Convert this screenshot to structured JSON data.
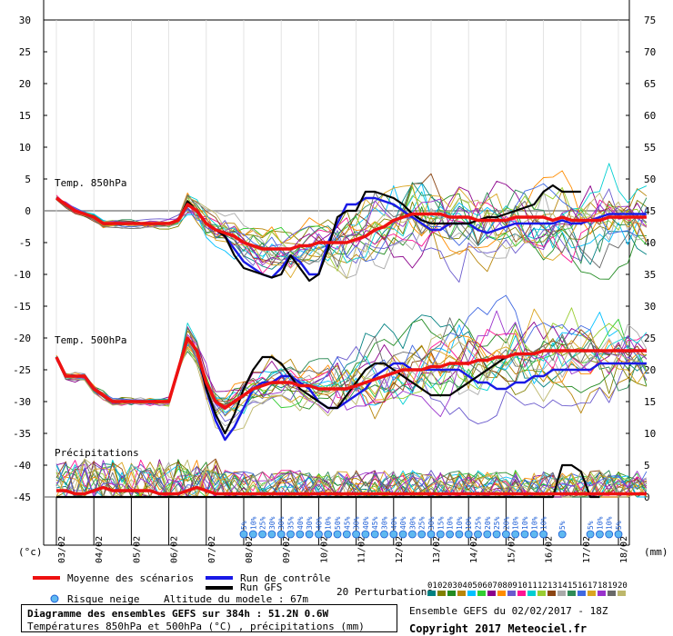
{
  "chart_data": {
    "type": "line",
    "title": "Diagramme des ensembles GEFS sur 384h : 51.2N 0.6W",
    "subtitle": "Températures 850hPa et 500hPa (°C) , précipitations (mm)",
    "left_axis": {
      "unit_label": "(°c)",
      "ticks": [
        30,
        25,
        20,
        15,
        10,
        5,
        0,
        -5,
        -10,
        -15,
        -20,
        -25,
        -30,
        -35,
        -40,
        -45
      ],
      "range": [
        -45,
        30
      ]
    },
    "right_axis": {
      "unit_label": "(mm)",
      "ticks": [
        75,
        70,
        65,
        60,
        55,
        50,
        45,
        40,
        35,
        30,
        25,
        20,
        15,
        10,
        5,
        0
      ],
      "range": [
        0,
        75
      ]
    },
    "x_axis": {
      "labels": [
        "03/02",
        "04/02",
        "05/02",
        "06/02",
        "07/02",
        "08/02",
        "09/02",
        "10/02",
        "11/02",
        "12/02",
        "13/02",
        "14/02",
        "15/02",
        "16/02",
        "17/02",
        "18/02"
      ]
    },
    "section_labels": {
      "t850": "Temp. 850hPa",
      "t500": "Temp. 500hPa",
      "precip": "Précipitations"
    },
    "t850": {
      "x": [
        0,
        0.25,
        0.5,
        0.75,
        1,
        1.25,
        1.5,
        1.75,
        2,
        2.25,
        2.5,
        2.75,
        3,
        3.25,
        3.5,
        3.75,
        4,
        4.25,
        4.5,
        4.75,
        5,
        5.25,
        5.5,
        5.75,
        6,
        6.25,
        6.5,
        6.75,
        7,
        7.25,
        7.5,
        7.75,
        8,
        8.25,
        8.5,
        8.75,
        9,
        9.25,
        9.5,
        9.75,
        10,
        10.25,
        10.5,
        10.75,
        11,
        11.25,
        11.5,
        11.75,
        12,
        12.25,
        12.5,
        12.75,
        13,
        13.25,
        13.5,
        13.75,
        14,
        14.25,
        14.5,
        14.75,
        15,
        15.25,
        15.5,
        15.75
      ],
      "mean": [
        2,
        1,
        0,
        -0.5,
        -1,
        -2,
        -2,
        -2,
        -2,
        -2,
        -2,
        -2,
        -2,
        -1.5,
        1,
        0,
        -2,
        -3,
        -3.5,
        -4,
        -5,
        -5.5,
        -6,
        -6,
        -6,
        -6,
        -5.5,
        -5.5,
        -5,
        -5,
        -5,
        -5,
        -4.5,
        -4,
        -3,
        -2.5,
        -1.5,
        -1,
        -0.5,
        -0.5,
        -0.5,
        -0.5,
        -1,
        -1,
        -1,
        -1.5,
        -1.5,
        -1.5,
        -1.5,
        -1,
        -1,
        -1,
        -1,
        -1.5,
        -1,
        -1.5,
        -1.5,
        -1.5,
        -1.5,
        -1,
        -1,
        -1,
        -1,
        -1
      ],
      "control": [
        2,
        1,
        0,
        -0.5,
        -1,
        -2,
        -2,
        -2,
        -2,
        -2,
        -2,
        -2,
        -2,
        -1.5,
        1,
        0,
        -2,
        -3,
        -4,
        -6,
        -8,
        -9,
        -10,
        -10.5,
        -9,
        -7,
        -8,
        -10,
        -10,
        -5,
        -2,
        1,
        1,
        2,
        2,
        1.5,
        1,
        0,
        -1,
        -2,
        -3,
        -3,
        -2,
        -2,
        -2,
        -3,
        -3.5,
        -3,
        -2.5,
        -2,
        -2,
        -2,
        -2,
        -2,
        -1.5,
        -2,
        -2,
        -1.5,
        -1,
        -0.5,
        -0.5,
        -0.5,
        -0.5,
        -0.5
      ],
      "gfs": [
        2,
        1,
        0,
        -0.5,
        -1,
        -2,
        -2,
        -2,
        -2,
        -2,
        -2,
        -2,
        -2,
        -1.5,
        1.5,
        0,
        -2,
        -3,
        -4,
        -7,
        -9,
        -9.5,
        -10,
        -10.5,
        -10,
        -7,
        -9,
        -11,
        -10,
        -6,
        -1,
        0,
        0,
        3,
        3,
        2.5,
        2,
        1,
        -0.5,
        -1.5,
        -2,
        -2,
        -2,
        -2,
        -2,
        -1.5,
        -1,
        -1,
        -0.5,
        0,
        0.5,
        1,
        3,
        4,
        3,
        3,
        3
      ]
    },
    "t500": {
      "mean": [
        -23,
        -26,
        -26,
        -26,
        -28,
        -29,
        -30,
        -30,
        -30,
        -30,
        -30,
        -30,
        -30,
        -25,
        -20,
        -22,
        -27,
        -30,
        -31,
        -30,
        -29,
        -28,
        -27.5,
        -27,
        -27,
        -27,
        -27.5,
        -27.5,
        -28,
        -28,
        -28,
        -28,
        -27.5,
        -27,
        -26.5,
        -26,
        -25.5,
        -25,
        -25,
        -25,
        -24.5,
        -24.5,
        -24,
        -24,
        -24,
        -23.5,
        -23.5,
        -23,
        -23,
        -22.5,
        -22.5,
        -22.5,
        -22,
        -22,
        -22,
        -22,
        -22,
        -22,
        -22,
        -22,
        -22,
        -22,
        -22,
        -22
      ],
      "control": [
        -23,
        -26,
        -26,
        -26,
        -28,
        -29,
        -30,
        -30,
        -30,
        -30,
        -30,
        -30,
        -30,
        -25,
        -20,
        -22,
        -28,
        -33,
        -36,
        -34,
        -31,
        -28,
        -27,
        -27,
        -26,
        -26,
        -27,
        -28,
        -30,
        -31,
        -31,
        -30,
        -29,
        -28,
        -26,
        -25,
        -24,
        -24,
        -25,
        -25,
        -25,
        -25,
        -25,
        -25,
        -26,
        -27,
        -27,
        -28,
        -28,
        -27,
        -27,
        -26,
        -26,
        -25,
        -25,
        -25,
        -25,
        -25,
        -24,
        -24,
        -24,
        -24,
        -24,
        -24
      ],
      "gfs": [
        -23,
        -26,
        -26,
        -26,
        -28,
        -29,
        -30,
        -30,
        -30,
        -30,
        -30,
        -30,
        -30,
        -25,
        -20,
        -22,
        -28,
        -32,
        -35,
        -32,
        -28,
        -25,
        -23,
        -23,
        -24,
        -26,
        -28,
        -29,
        -30,
        -31,
        -31,
        -29,
        -27,
        -25,
        -24,
        -24,
        -25,
        -26,
        -27,
        -28,
        -29,
        -29,
        -29,
        -28,
        -27,
        -26,
        -25,
        -24,
        -23,
        -22.5,
        -22.5,
        -22.5,
        -22,
        -22
      ]
    },
    "precip_mm": {
      "mean": [
        1,
        1,
        0.5,
        0.5,
        1,
        1.5,
        1,
        1,
        1,
        1,
        1,
        0.5,
        0.5,
        0.5,
        1,
        1.5,
        1,
        0.5,
        0.5,
        0.5,
        0.5,
        0.5,
        0.5,
        0.5,
        0.5,
        0.5,
        0.5,
        0.5,
        0.5,
        0.5,
        0.5,
        0.5,
        0.5,
        0.5,
        0.5,
        0.5,
        0.5,
        0.5,
        0.5,
        0.5,
        0.5,
        0.5,
        0.5,
        0.5,
        0.5,
        0.5,
        0.5,
        0.5,
        0.5,
        0.5,
        0.5,
        0.5,
        0.5,
        0.5,
        0.5,
        0.5,
        0.5,
        0.5,
        0.5,
        0.5,
        0.5,
        0.5,
        0.5,
        0.5
      ],
      "gfs": [
        0,
        0,
        0,
        0,
        0,
        0,
        0,
        0,
        0,
        0,
        0,
        0,
        0,
        0,
        0,
        0,
        0,
        0,
        0,
        0,
        0,
        0,
        0,
        0,
        0,
        0,
        0,
        0,
        0,
        0,
        0,
        0,
        0,
        0,
        0,
        0,
        0,
        0,
        0,
        0,
        0,
        0,
        0,
        0,
        0,
        0,
        0,
        0,
        0,
        0,
        0,
        0,
        0,
        0,
        5,
        5,
        4,
        0,
        0
      ]
    },
    "snow_risk": {
      "x": [
        5,
        5.25,
        5.5,
        5.75,
        6,
        6.25,
        6.5,
        6.75,
        7,
        7.25,
        7.5,
        7.75,
        8,
        8.25,
        8.5,
        8.75,
        9,
        9.25,
        9.5,
        9.75,
        10,
        10.25,
        10.5,
        10.75,
        11,
        11.25,
        11.5,
        11.75,
        12,
        12.25,
        12.5,
        12.75,
        13,
        13.5,
        14.25,
        14.5,
        14.75,
        15
      ],
      "pct": [
        "5%",
        "10%",
        "25%",
        "30%",
        "30%",
        "35%",
        "40%",
        "30%",
        "40%",
        "10%",
        "50%",
        "45%",
        "30%",
        "40%",
        "45%",
        "30%",
        "40%",
        "40%",
        "30%",
        "25%",
        "30%",
        "15%",
        "10%",
        "10%",
        "10%",
        "25%",
        "20%",
        "25%",
        "20%",
        "10%",
        "10%",
        "10%",
        "10%",
        "5%",
        "5%",
        "10%",
        "10%",
        "5%"
      ]
    },
    "legend": {
      "mean": "Moyenne des scénarios",
      "control": "Run de contrôle",
      "gfs": "Run GFS",
      "perturbations": "20 Perturbations",
      "snow": "Risque neige",
      "altitude": "Altitude du modele : 67m",
      "pert_numbers": [
        "01",
        "02",
        "03",
        "04",
        "05",
        "06",
        "07",
        "08",
        "09",
        "10",
        "11",
        "12",
        "13",
        "14",
        "15",
        "16",
        "17",
        "18",
        "19",
        "20"
      ]
    },
    "colors": {
      "mean": "#ee1111",
      "control": "#1a1ae6",
      "gfs": "#000000",
      "perturbations": [
        "#008080",
        "#808000",
        "#228b22",
        "#b8860b",
        "#00c0ff",
        "#32cd32",
        "#8b008b",
        "#ff8c00",
        "#6a5acd",
        "#ff1493",
        "#00ced1",
        "#9acd32",
        "#8b4513",
        "#a9a9a9",
        "#2e8b57",
        "#4169e1",
        "#daa520",
        "#9932cc",
        "#696969",
        "#bdb76b"
      ]
    },
    "grid": true,
    "footer": {
      "run": "Ensemble GEFS du 02/02/2017 - 18Z",
      "copyright": "Copyright 2017 Meteociel.fr"
    }
  }
}
